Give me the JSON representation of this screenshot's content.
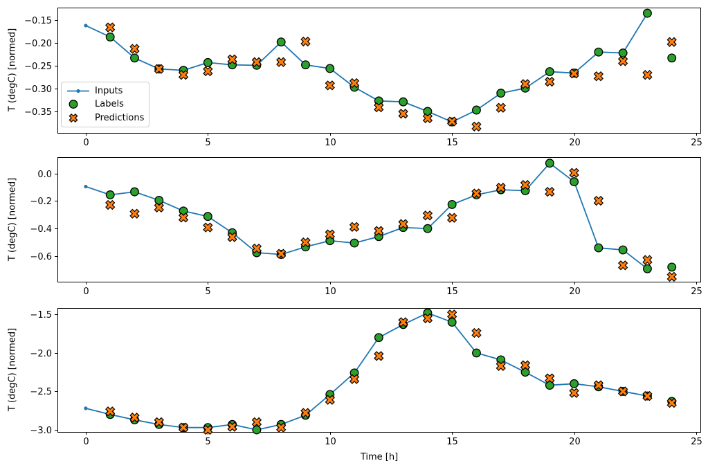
{
  "figure": {
    "xlabel": "Time [h]",
    "ylabel": "T (degC) [normed]",
    "background": "#ffffff",
    "spine_color": "#000000",
    "legend": {
      "items": [
        {
          "label": "Inputs",
          "marker": "line-with-dot",
          "color": "#1f77b4",
          "edge_color": "#1f77b4"
        },
        {
          "label": "Labels",
          "marker": "circle",
          "color": "#2ca02c",
          "edge_color": "#000000"
        },
        {
          "label": "Predictions",
          "marker": "X",
          "color": "#ff7f0e",
          "edge_color": "#000000"
        }
      ]
    }
  },
  "chart_data": [
    {
      "type": "line",
      "title": "",
      "xlabel": "",
      "ylabel": "T (degC) [normed]",
      "xlim": [
        -1.16,
        25.17
      ],
      "ylim": [
        -0.397,
        -0.1227
      ],
      "grid": false,
      "legend_position": "center left",
      "xticks": {
        "values": [
          0,
          5,
          10,
          15,
          20,
          25
        ],
        "labels": [
          "0",
          "5",
          "10",
          "15",
          "20",
          "25"
        ]
      },
      "yticks": {
        "values": [
          -0.15,
          -0.2,
          -0.25,
          -0.3,
          -0.35
        ],
        "labels": [
          "−0.15",
          "−0.20",
          "−0.25",
          "−0.30",
          "−0.35"
        ]
      },
      "series": [
        {
          "name": "Inputs",
          "type": "line",
          "marker": "dot",
          "color": "#1f77b4",
          "x": [
            0,
            1,
            2,
            3,
            4,
            5,
            6,
            7,
            8,
            9,
            10,
            11,
            12,
            13,
            14,
            15,
            16,
            17,
            18,
            19,
            20,
            21,
            22,
            23
          ],
          "y": [
            -0.162,
            -0.187,
            -0.233,
            -0.257,
            -0.26,
            -0.243,
            -0.248,
            -0.249,
            -0.198,
            -0.248,
            -0.256,
            -0.297,
            -0.327,
            -0.329,
            -0.35,
            -0.373,
            -0.347,
            -0.31,
            -0.299,
            -0.263,
            -0.266,
            -0.22,
            -0.222,
            -0.135
          ]
        },
        {
          "name": "Labels",
          "type": "scatter",
          "marker": "circle",
          "color": "#2ca02c",
          "edge_color": "#000000",
          "x": [
            1,
            2,
            3,
            4,
            5,
            6,
            7,
            8,
            9,
            10,
            11,
            12,
            13,
            14,
            15,
            16,
            17,
            18,
            19,
            20,
            21,
            22,
            23,
            24
          ],
          "y": [
            -0.187,
            -0.233,
            -0.257,
            -0.26,
            -0.243,
            -0.248,
            -0.249,
            -0.198,
            -0.248,
            -0.256,
            -0.297,
            -0.327,
            -0.329,
            -0.35,
            -0.373,
            -0.347,
            -0.31,
            -0.299,
            -0.263,
            -0.266,
            -0.22,
            -0.222,
            -0.135,
            -0.233
          ]
        },
        {
          "name": "Predictions",
          "type": "scatter",
          "marker": "X",
          "color": "#ff7f0e",
          "edge_color": "#000000",
          "x": [
            1,
            2,
            3,
            4,
            5,
            6,
            7,
            8,
            9,
            10,
            11,
            12,
            13,
            14,
            15,
            16,
            17,
            18,
            19,
            20,
            21,
            22,
            23,
            24
          ],
          "y": [
            -0.166,
            -0.213,
            -0.257,
            -0.27,
            -0.262,
            -0.236,
            -0.242,
            -0.242,
            -0.197,
            -0.293,
            -0.288,
            -0.341,
            -0.355,
            -0.365,
            -0.372,
            -0.383,
            -0.342,
            -0.29,
            -0.285,
            -0.267,
            -0.273,
            -0.24,
            -0.27,
            -0.198
          ]
        }
      ]
    },
    {
      "type": "line",
      "title": "",
      "xlabel": "",
      "ylabel": "T (degC) [normed]",
      "xlim": [
        -1.16,
        25.17
      ],
      "ylim": [
        -0.786,
        0.119
      ],
      "grid": false,
      "xticks": {
        "values": [
          0,
          5,
          10,
          15,
          20,
          25
        ],
        "labels": [
          "0",
          "5",
          "10",
          "15",
          "20",
          "25"
        ]
      },
      "yticks": {
        "values": [
          0.0,
          -0.2,
          -0.4,
          -0.6
        ],
        "labels": [
          "0.0",
          "−0.2",
          "−0.4",
          "−0.6"
        ]
      },
      "series": [
        {
          "name": "Inputs",
          "type": "line",
          "marker": "dot",
          "color": "#1f77b4",
          "x": [
            0,
            1,
            2,
            3,
            4,
            5,
            6,
            7,
            8,
            9,
            10,
            11,
            12,
            13,
            14,
            15,
            16,
            17,
            18,
            19,
            20,
            21,
            22,
            23
          ],
          "y": [
            -0.095,
            -0.155,
            -0.133,
            -0.195,
            -0.272,
            -0.312,
            -0.43,
            -0.575,
            -0.588,
            -0.533,
            -0.488,
            -0.505,
            -0.458,
            -0.392,
            -0.4,
            -0.225,
            -0.155,
            -0.118,
            -0.125,
            0.075,
            -0.06,
            -0.54,
            -0.555,
            -0.692
          ]
        },
        {
          "name": "Labels",
          "type": "scatter",
          "marker": "circle",
          "color": "#2ca02c",
          "edge_color": "#000000",
          "x": [
            1,
            2,
            3,
            4,
            5,
            6,
            7,
            8,
            9,
            10,
            11,
            12,
            13,
            14,
            15,
            16,
            17,
            18,
            19,
            20,
            21,
            22,
            23,
            24
          ],
          "y": [
            -0.155,
            -0.133,
            -0.195,
            -0.272,
            -0.312,
            -0.43,
            -0.575,
            -0.588,
            -0.533,
            -0.488,
            -0.505,
            -0.458,
            -0.392,
            -0.4,
            -0.225,
            -0.155,
            -0.118,
            -0.125,
            0.075,
            -0.06,
            -0.54,
            -0.555,
            -0.692,
            -0.68
          ]
        },
        {
          "name": "Predictions",
          "type": "scatter",
          "marker": "X",
          "color": "#ff7f0e",
          "edge_color": "#000000",
          "x": [
            1,
            2,
            3,
            4,
            5,
            6,
            7,
            8,
            9,
            10,
            11,
            12,
            13,
            14,
            15,
            16,
            17,
            18,
            19,
            20,
            21,
            22,
            23,
            24
          ],
          "y": [
            -0.228,
            -0.292,
            -0.247,
            -0.32,
            -0.392,
            -0.462,
            -0.545,
            -0.583,
            -0.5,
            -0.442,
            -0.388,
            -0.417,
            -0.367,
            -0.305,
            -0.322,
            -0.145,
            -0.103,
            -0.083,
            -0.133,
            0.005,
            -0.198,
            -0.667,
            -0.628,
            -0.75
          ]
        }
      ]
    },
    {
      "type": "line",
      "title": "",
      "xlabel": "Time [h]",
      "ylabel": "T (degC) [normed]",
      "xlim": [
        -1.16,
        25.17
      ],
      "ylim": [
        -3.027,
        -1.416
      ],
      "grid": false,
      "xticks": {
        "values": [
          0,
          5,
          10,
          15,
          20,
          25
        ],
        "labels": [
          "0",
          "5",
          "10",
          "15",
          "20",
          "25"
        ]
      },
      "yticks": {
        "values": [
          -1.5,
          -2.0,
          -2.5,
          -3.0
        ],
        "labels": [
          "−1.5",
          "−2.0",
          "−2.5",
          "−3.0"
        ]
      },
      "series": [
        {
          "name": "Inputs",
          "type": "line",
          "marker": "dot",
          "color": "#1f77b4",
          "x": [
            0,
            1,
            2,
            3,
            4,
            5,
            6,
            7,
            8,
            9,
            10,
            11,
            12,
            13,
            14,
            15,
            16,
            17,
            18,
            19,
            20,
            21,
            22,
            23
          ],
          "y": [
            -2.72,
            -2.8,
            -2.87,
            -2.93,
            -2.97,
            -2.97,
            -2.93,
            -3.0,
            -2.93,
            -2.81,
            -2.54,
            -2.26,
            -1.8,
            -1.63,
            -1.48,
            -1.6,
            -2.0,
            -2.09,
            -2.25,
            -2.42,
            -2.4,
            -2.44,
            -2.5,
            -2.56
          ]
        },
        {
          "name": "Labels",
          "type": "scatter",
          "marker": "circle",
          "color": "#2ca02c",
          "edge_color": "#000000",
          "x": [
            1,
            2,
            3,
            4,
            5,
            6,
            7,
            8,
            9,
            10,
            11,
            12,
            13,
            14,
            15,
            16,
            17,
            18,
            19,
            20,
            21,
            22,
            23,
            24
          ],
          "y": [
            -2.8,
            -2.87,
            -2.93,
            -2.97,
            -2.97,
            -2.93,
            -3.0,
            -2.93,
            -2.81,
            -2.54,
            -2.26,
            -1.8,
            -1.63,
            -1.48,
            -1.6,
            -2.0,
            -2.09,
            -2.25,
            -2.42,
            -2.4,
            -2.44,
            -2.5,
            -2.56,
            -2.63
          ]
        },
        {
          "name": "Predictions",
          "type": "scatter",
          "marker": "X",
          "color": "#ff7f0e",
          "edge_color": "#000000",
          "x": [
            1,
            2,
            3,
            4,
            5,
            6,
            7,
            8,
            9,
            10,
            11,
            12,
            13,
            14,
            15,
            16,
            17,
            18,
            19,
            20,
            21,
            22,
            23,
            24
          ],
          "y": [
            -2.76,
            -2.84,
            -2.9,
            -2.97,
            -3.0,
            -2.96,
            -2.9,
            -2.97,
            -2.78,
            -2.61,
            -2.34,
            -2.04,
            -1.6,
            -1.55,
            -1.5,
            -1.74,
            -2.17,
            -2.16,
            -2.33,
            -2.52,
            -2.42,
            -2.5,
            -2.56,
            -2.65
          ]
        }
      ]
    }
  ]
}
